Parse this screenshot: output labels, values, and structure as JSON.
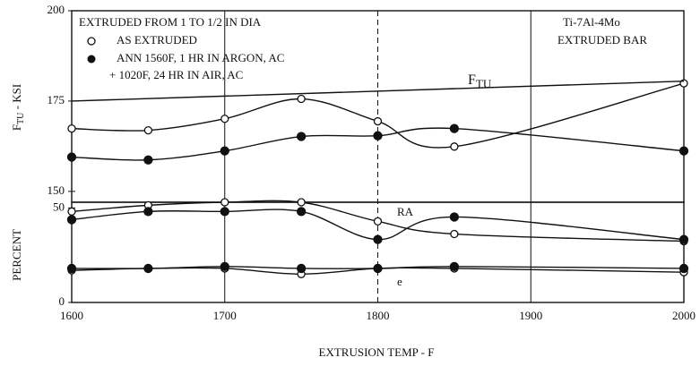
{
  "chart_data": [
    {
      "type": "line",
      "ylabel": {
        "main": "F",
        "sub": "TU",
        "rest": " - KSI"
      },
      "ylim": [
        147,
        200
      ],
      "yticks": [
        150,
        175,
        200
      ],
      "xlim": [
        1600,
        2000
      ],
      "x": [
        1600,
        1650,
        1700,
        1750,
        1800,
        1850,
        2000
      ],
      "annotations": [
        "EXTRUDED FROM 1 TO 1/2 IN DIA",
        "Ti-7Al-4Mo",
        "EXTRUDED BAR"
      ],
      "curve_label": {
        "main": "F",
        "sub": "TU"
      },
      "series": [
        {
          "name": "AS EXTRUDED",
          "marker": "open",
          "values": [
            167.4,
            166.9,
            170.1,
            175.6,
            169.4,
            162.4,
            179.9
          ]
        },
        {
          "name": "ANN 1560F, 1 HR IN ARGON, AC",
          "name2": "+ 1020F, 24 HR IN AIR, AC",
          "marker": "filled",
          "values": [
            159.5,
            158.7,
            161.2,
            165.2,
            165.4,
            167.4,
            161.2
          ]
        },
        {
          "marker": "none",
          "x": [
            1600,
            2000
          ],
          "values": [
            175,
            180.5
          ]
        }
      ]
    },
    {
      "type": "line",
      "ylabel": "PERCENT",
      "xlabel": "EXTRUSION TEMP - F",
      "ylim": [
        0,
        53
      ],
      "yticks": [
        0,
        50
      ],
      "xlim": [
        1600,
        2000
      ],
      "xticks": [
        1600,
        1700,
        1800,
        1900,
        2000
      ],
      "x": [
        1600,
        1650,
        1700,
        1750,
        1800,
        1850,
        2000
      ],
      "annotations": [
        "RA",
        "e"
      ],
      "series": [
        {
          "marker": "open",
          "values": [
            48.1,
            51.4,
            53,
            53,
            42.9,
            36.2,
            32.4
          ]
        },
        {
          "marker": "filled",
          "values": [
            43.8,
            48.1,
            48.1,
            48.1,
            33.3,
            45.2,
            33.3
          ]
        },
        {
          "marker": "open",
          "values": [
            17,
            18,
            18,
            15,
            18,
            18,
            16
          ]
        },
        {
          "marker": "filled",
          "values": [
            18,
            18,
            19,
            18,
            18,
            19,
            18
          ]
        }
      ]
    }
  ]
}
